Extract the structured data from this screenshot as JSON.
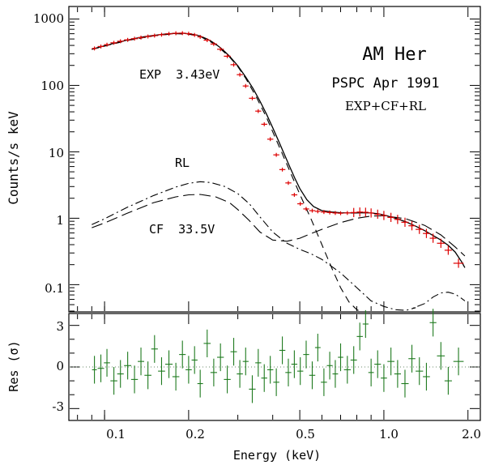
{
  "chart_data": [
    {
      "type": "line",
      "panel": "spectrum",
      "title": "AM Her",
      "annotations": {
        "title": "AM Her",
        "instrument": "PSPC Apr 1991",
        "model": "EXP+CF+RL",
        "exp_label": "EXP  3.43eV",
        "rl_label": "RL",
        "cf_label": "CF  33.5V"
      },
      "xlabel": "Energy (keV)",
      "ylabel": "Counts/s keV",
      "xscale": "log",
      "yscale": "log",
      "xlim": [
        0.075,
        2.2
      ],
      "ylim": [
        0.04,
        1500
      ],
      "y_ticks": [
        {
          "value": 0.1,
          "label": "0.1"
        },
        {
          "value": 1,
          "label": "1"
        },
        {
          "value": 10,
          "label": "10"
        },
        {
          "value": 100,
          "label": "100"
        },
        {
          "value": 1000,
          "label": "1000"
        }
      ],
      "series": [
        {
          "name": "data",
          "style": "points",
          "color": "#dd0000",
          "x": [
            0.092,
            0.097,
            0.102,
            0.108,
            0.114,
            0.121,
            0.128,
            0.135,
            0.143,
            0.151,
            0.16,
            0.17,
            0.18,
            0.19,
            0.2,
            0.21,
            0.22,
            0.233,
            0.246,
            0.26,
            0.275,
            0.29,
            0.305,
            0.32,
            0.338,
            0.355,
            0.373,
            0.392,
            0.412,
            0.433,
            0.455,
            0.478,
            0.502,
            0.527,
            0.554,
            0.58,
            0.61,
            0.64,
            0.67,
            0.7,
            0.74,
            0.78,
            0.82,
            0.86,
            0.9,
            0.95,
            1.0,
            1.06,
            1.12,
            1.19,
            1.26,
            1.34,
            1.42,
            1.5,
            1.6,
            1.7,
            1.85
          ],
          "y": [
            360,
            385,
            410,
            438,
            462,
            485,
            505,
            525,
            545,
            562,
            580,
            598,
            610,
            612,
            600,
            575,
            538,
            480,
            420,
            350,
            275,
            205,
            145,
            98,
            64,
            41,
            26,
            15.5,
            9,
            5.4,
            3.4,
            2.25,
            1.65,
            1.38,
            1.3,
            1.27,
            1.24,
            1.22,
            1.2,
            1.19,
            1.2,
            1.22,
            1.24,
            1.23,
            1.2,
            1.15,
            1.1,
            1.03,
            0.96,
            0.87,
            0.77,
            0.68,
            0.59,
            0.5,
            0.42,
            0.33,
            0.21
          ]
        },
        {
          "name": "EXP+CF+RL",
          "style": "solid",
          "x": [
            0.09,
            0.1,
            0.11,
            0.12,
            0.13,
            0.14,
            0.15,
            0.16,
            0.17,
            0.18,
            0.19,
            0.2,
            0.21,
            0.22,
            0.23,
            0.24,
            0.25,
            0.26,
            0.27,
            0.28,
            0.3,
            0.32,
            0.34,
            0.36,
            0.38,
            0.4,
            0.42,
            0.44,
            0.46,
            0.48,
            0.5,
            0.53,
            0.56,
            0.6,
            0.65,
            0.7,
            0.75,
            0.8,
            0.85,
            0.9,
            0.95,
            1.0,
            1.1,
            1.2,
            1.3,
            1.4,
            1.5,
            1.6,
            1.7,
            1.8,
            1.9,
            1.95
          ],
          "y": [
            350,
            395,
            440,
            480,
            515,
            545,
            565,
            585,
            598,
            608,
            610,
            600,
            582,
            552,
            512,
            466,
            418,
            368,
            320,
            276,
            198,
            134,
            90,
            58,
            37,
            23,
            14.5,
            9.2,
            6,
            4,
            2.8,
            1.9,
            1.5,
            1.3,
            1.24,
            1.21,
            1.2,
            1.2,
            1.21,
            1.2,
            1.17,
            1.12,
            1.0,
            0.88,
            0.76,
            0.65,
            0.55,
            0.47,
            0.39,
            0.31,
            0.22,
            0.18
          ]
        },
        {
          "name": "EXP",
          "style": "dashed",
          "x": [
            0.09,
            0.1,
            0.12,
            0.15,
            0.18,
            0.2,
            0.22,
            0.25,
            0.28,
            0.3,
            0.32,
            0.35,
            0.38,
            0.4,
            0.43,
            0.46,
            0.5,
            0.55,
            0.6,
            0.65,
            0.7,
            0.75,
            0.8,
            0.82
          ],
          "y": [
            348,
            390,
            472,
            558,
            600,
            590,
            545,
            412,
            268,
            192,
            128,
            66,
            33,
            20,
            10,
            5.2,
            2.3,
            0.95,
            0.4,
            0.18,
            0.09,
            0.055,
            0.042,
            0.04
          ]
        },
        {
          "name": "RL",
          "style": "dashdot",
          "x": [
            0.09,
            0.1,
            0.12,
            0.15,
            0.18,
            0.2,
            0.22,
            0.24,
            0.27,
            0.3,
            0.33,
            0.36,
            0.4,
            0.45,
            0.5,
            0.55,
            0.6,
            0.7,
            0.8,
            0.9,
            1.0,
            1.1,
            1.2,
            1.3,
            1.25,
            1.4,
            1.5,
            1.6,
            1.7,
            1.8,
            1.9,
            1.95
          ],
          "y": [
            0.8,
            0.98,
            1.45,
            2.2,
            2.95,
            3.35,
            3.55,
            3.45,
            3.0,
            2.35,
            1.65,
            1.05,
            0.62,
            0.42,
            0.34,
            0.29,
            0.24,
            0.15,
            0.09,
            0.057,
            0.047,
            0.042,
            0.041,
            0.045,
            0.043,
            0.052,
            0.065,
            0.075,
            0.077,
            0.072,
            0.062,
            0.057
          ]
        },
        {
          "name": "CF",
          "style": "longdash",
          "x": [
            0.09,
            0.1,
            0.12,
            0.15,
            0.18,
            0.2,
            0.22,
            0.25,
            0.28,
            0.3,
            0.33,
            0.36,
            0.4,
            0.45,
            0.5,
            0.55,
            0.6,
            0.7,
            0.8,
            0.9,
            1.0,
            1.2,
            1.4,
            1.6,
            1.8,
            1.95
          ],
          "y": [
            0.72,
            0.85,
            1.18,
            1.72,
            2.1,
            2.25,
            2.28,
            2.1,
            1.72,
            1.35,
            0.92,
            0.62,
            0.47,
            0.45,
            0.5,
            0.59,
            0.68,
            0.86,
            1.0,
            1.08,
            1.09,
            0.98,
            0.78,
            0.56,
            0.37,
            0.27
          ]
        }
      ]
    },
    {
      "type": "scatter",
      "panel": "residuals",
      "ylabel": "Res (σ)",
      "xlabel": "Energy (keV)",
      "xscale": "log",
      "xlim": [
        0.075,
        2.2
      ],
      "ylim": [
        -3.8,
        3.8
      ],
      "x_ticks": [
        {
          "value": 0.1,
          "label": "0.1"
        },
        {
          "value": 0.2,
          "label": "0.2"
        },
        {
          "value": 0.5,
          "label": "0.5"
        },
        {
          "value": 1.0,
          "label": "1.0"
        },
        {
          "value": 2.0,
          "label": "2.0"
        }
      ],
      "y_ticks": [
        {
          "value": -3,
          "label": "-3"
        },
        {
          "value": 0,
          "label": "0"
        },
        {
          "value": 3,
          "label": "3"
        }
      ],
      "color": "#1e7a1e",
      "x": [
        0.092,
        0.097,
        0.102,
        0.108,
        0.114,
        0.121,
        0.128,
        0.135,
        0.143,
        0.151,
        0.16,
        0.17,
        0.18,
        0.19,
        0.2,
        0.21,
        0.22,
        0.233,
        0.246,
        0.26,
        0.275,
        0.29,
        0.305,
        0.32,
        0.338,
        0.355,
        0.373,
        0.392,
        0.412,
        0.433,
        0.455,
        0.478,
        0.502,
        0.527,
        0.554,
        0.58,
        0.61,
        0.64,
        0.67,
        0.7,
        0.74,
        0.78,
        0.82,
        0.86,
        0.9,
        0.95,
        1.0,
        1.06,
        1.12,
        1.19,
        1.26,
        1.34,
        1.42,
        1.5,
        1.6,
        1.7,
        1.85
      ],
      "y": [
        -0.2,
        -0.1,
        0.3,
        -1.0,
        -0.5,
        0.1,
        -0.9,
        0.4,
        -0.6,
        1.3,
        -0.3,
        0.2,
        -0.7,
        0.9,
        -0.2,
        0.5,
        -1.2,
        1.7,
        -0.4,
        0.7,
        -0.9,
        1.1,
        -0.5,
        0.4,
        -1.6,
        0.3,
        -0.8,
        -0.2,
        -1.1,
        1.2,
        -0.4,
        0.2,
        -0.3,
        0.9,
        -0.6,
        1.4,
        -1.1,
        0.1,
        -0.5,
        0.7,
        -0.2,
        0.5,
        2.2,
        3.1,
        -0.4,
        0.2,
        -0.8,
        0.4,
        -0.5,
        -1.2,
        0.6,
        -0.3,
        -0.7,
        3.2,
        0.8,
        -1.0,
        0.4
      ]
    }
  ]
}
